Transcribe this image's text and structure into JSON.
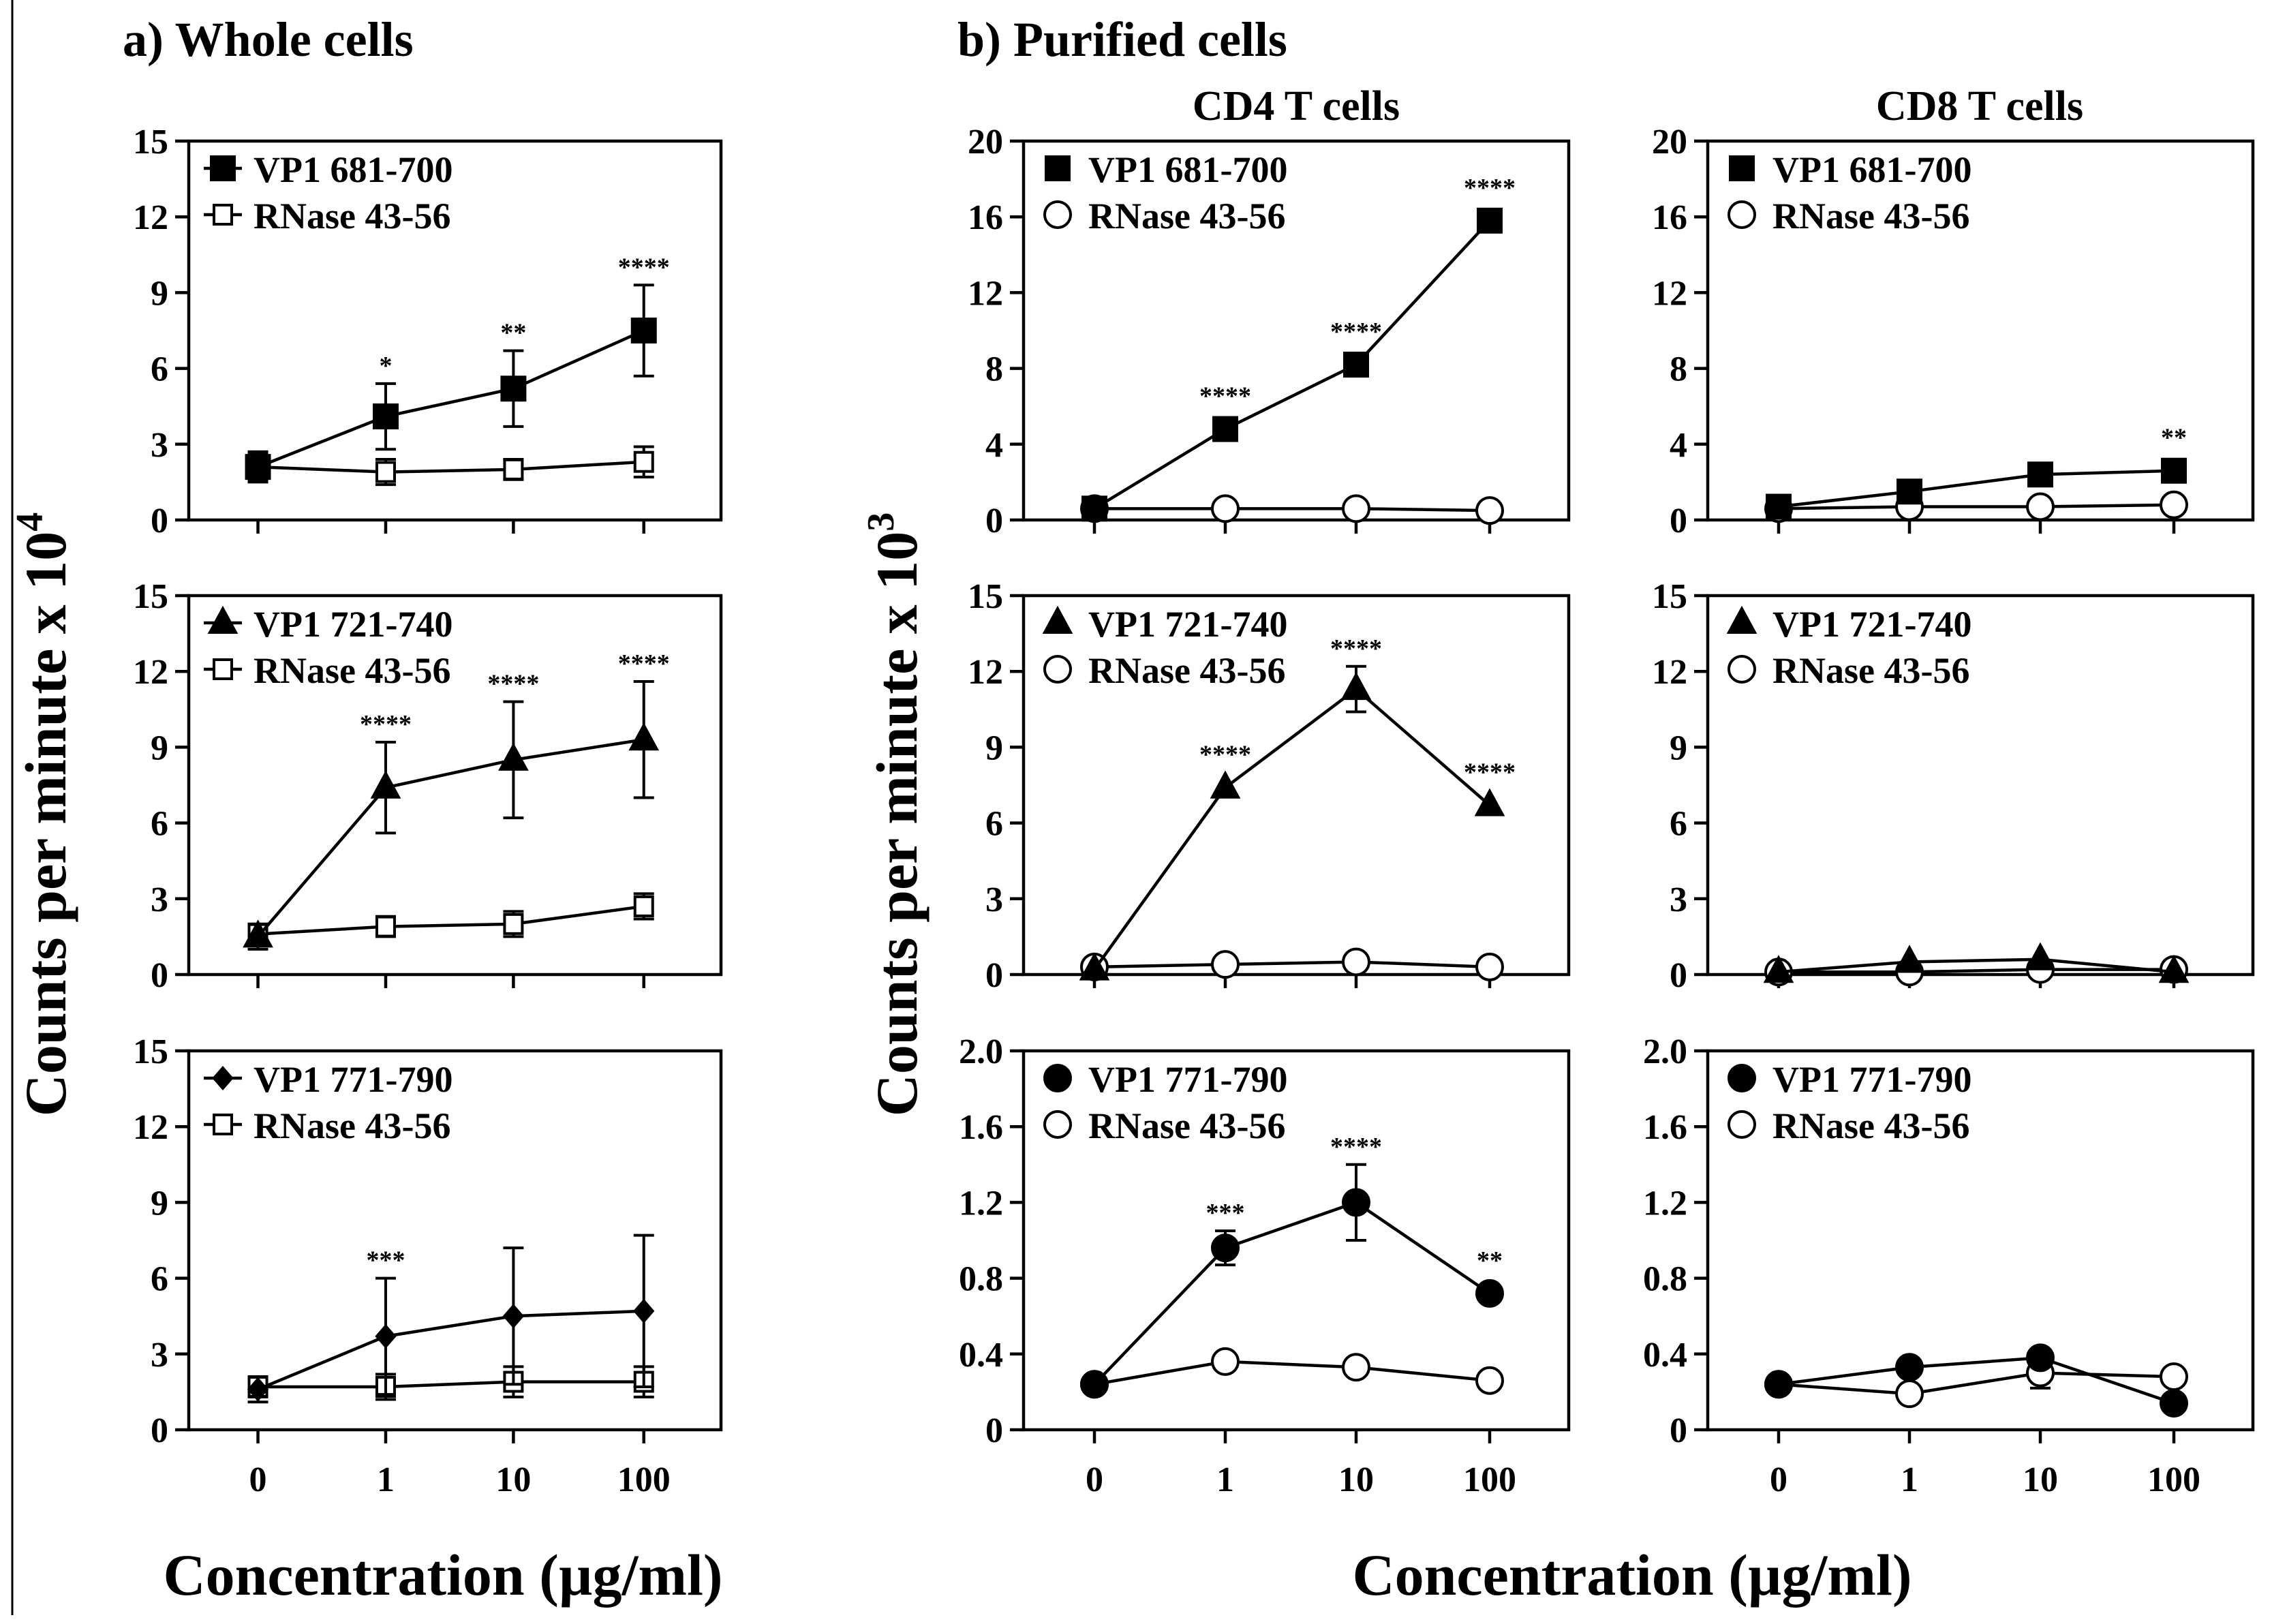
{
  "figure": {
    "panel_a_header": "a) Whole cells",
    "panel_b_header": "b) Purified cells",
    "col_cd4_title": "CD4 T cells",
    "col_cd8_title": "CD8 T cells",
    "ylabel_a": "Counts per minute x 10",
    "ylabel_a_sup": "4",
    "ylabel_b": "Counts per minute x 10",
    "ylabel_b_sup": "3",
    "xlabel_a": "Concentration (µg/ml)",
    "xlabel_b": "Concentration (µg/ml)",
    "colors": {
      "ink": "#000000",
      "background": "#ffffff"
    }
  },
  "chart_data": [
    {
      "id": "whole-vp1-681",
      "type": "line",
      "group": "Whole cells",
      "categories": [
        "0",
        "1",
        "10",
        "100"
      ],
      "xlabel": "Concentration (µg/ml)",
      "ylabel": "Counts per minute x 10^4",
      "ylim": [
        0,
        15
      ],
      "yticks": [
        0,
        3,
        6,
        9,
        12,
        15
      ],
      "yticklabels": [
        "0",
        "3",
        "6",
        "9",
        "12",
        "15"
      ],
      "series": [
        {
          "name": "VP1 681-700",
          "marker": "filled-square",
          "values": [
            2.1,
            4.1,
            5.2,
            7.5
          ],
          "errors": [
            0.6,
            1.3,
            1.5,
            1.8
          ]
        },
        {
          "name": "RNase 43-56",
          "marker": "open-square",
          "values": [
            2.1,
            1.9,
            2.0,
            2.3
          ],
          "errors": [
            0.5,
            0.5,
            0.4,
            0.6
          ]
        }
      ],
      "significance": [
        "",
        "*",
        "**",
        "****"
      ],
      "sig_series": 0
    },
    {
      "id": "whole-vp1-721",
      "type": "line",
      "group": "Whole cells",
      "categories": [
        "0",
        "1",
        "10",
        "100"
      ],
      "xlabel": "Concentration (µg/ml)",
      "ylabel": "Counts per minute x 10^4",
      "ylim": [
        0,
        15
      ],
      "yticks": [
        0,
        3,
        6,
        9,
        12,
        15
      ],
      "yticklabels": [
        "0",
        "3",
        "6",
        "9",
        "12",
        "15"
      ],
      "series": [
        {
          "name": "VP1 721-740",
          "marker": "filled-triangle",
          "values": [
            1.5,
            7.4,
            8.5,
            9.3
          ],
          "errors": [
            0.5,
            1.8,
            2.3,
            2.3
          ]
        },
        {
          "name": "RNase 43-56",
          "marker": "open-square",
          "values": [
            1.6,
            1.9,
            2.0,
            2.7
          ],
          "errors": [
            0.4,
            0.4,
            0.5,
            0.5
          ]
        }
      ],
      "significance": [
        "",
        "****",
        "****",
        "****"
      ],
      "sig_series": 0
    },
    {
      "id": "whole-vp1-771",
      "type": "line",
      "group": "Whole cells",
      "categories": [
        "0",
        "1",
        "10",
        "100"
      ],
      "xlabel": "Concentration (µg/ml)",
      "ylabel": "Counts per minute x 10^4",
      "ylim": [
        0,
        15
      ],
      "yticks": [
        0,
        3,
        6,
        9,
        12,
        15
      ],
      "yticklabels": [
        "0",
        "3",
        "6",
        "9",
        "12",
        "15"
      ],
      "series": [
        {
          "name": "VP1 771-790",
          "marker": "filled-diamond",
          "values": [
            1.6,
            3.7,
            4.5,
            4.7
          ],
          "errors": [
            0.5,
            2.3,
            2.7,
            3.0
          ]
        },
        {
          "name": "RNase 43-56",
          "marker": "open-square",
          "values": [
            1.7,
            1.7,
            1.9,
            1.9
          ],
          "errors": [
            0.4,
            0.5,
            0.6,
            0.6
          ]
        }
      ],
      "significance": [
        "",
        "***",
        "",
        ""
      ],
      "sig_series": 0
    },
    {
      "id": "cd4-vp1-681",
      "type": "line",
      "group": "CD4 T cells",
      "categories": [
        "0",
        "1",
        "10",
        "100"
      ],
      "xlabel": "Concentration (µg/ml)",
      "ylabel": "Counts per minute x 10^3",
      "ylim": [
        0,
        20
      ],
      "yticks": [
        0,
        4,
        8,
        12,
        16,
        20
      ],
      "yticklabels": [
        "0",
        "4",
        "8",
        "12",
        "16",
        "20"
      ],
      "series": [
        {
          "name": "VP1 681-700",
          "marker": "filled-square",
          "values": [
            0.6,
            4.8,
            8.2,
            15.8
          ],
          "errors": [
            0,
            0,
            0,
            0
          ]
        },
        {
          "name": "RNase 43-56",
          "marker": "open-circle",
          "values": [
            0.6,
            0.6,
            0.6,
            0.5
          ],
          "errors": [
            0,
            0,
            0,
            0
          ]
        }
      ],
      "significance": [
        "",
        "****",
        "****",
        "****"
      ],
      "sig_series": 0
    },
    {
      "id": "cd8-vp1-681",
      "type": "line",
      "group": "CD8 T cells",
      "categories": [
        "0",
        "1",
        "10",
        "100"
      ],
      "xlabel": "Concentration (µg/ml)",
      "ylabel": "Counts per minute x 10^3",
      "ylim": [
        0,
        20
      ],
      "yticks": [
        0,
        4,
        8,
        12,
        16,
        20
      ],
      "yticklabels": [
        "0",
        "4",
        "8",
        "12",
        "16",
        "20"
      ],
      "series": [
        {
          "name": "VP1 681-700",
          "marker": "filled-square",
          "values": [
            0.7,
            1.5,
            2.4,
            2.6
          ],
          "errors": [
            0,
            0,
            0,
            0
          ]
        },
        {
          "name": "RNase 43-56",
          "marker": "open-circle",
          "values": [
            0.6,
            0.7,
            0.7,
            0.8
          ],
          "errors": [
            0,
            0,
            0,
            0
          ]
        }
      ],
      "significance": [
        "",
        "",
        "",
        "**"
      ],
      "sig_series": 0
    },
    {
      "id": "cd4-vp1-721",
      "type": "line",
      "group": "CD4 T cells",
      "categories": [
        "0",
        "1",
        "10",
        "100"
      ],
      "xlabel": "Concentration (µg/ml)",
      "ylabel": "Counts per minute x 10^3",
      "ylim": [
        0,
        15
      ],
      "yticks": [
        0,
        3,
        6,
        9,
        12,
        15
      ],
      "yticklabels": [
        "0",
        "3",
        "6",
        "9",
        "12",
        "15"
      ],
      "series": [
        {
          "name": "VP1 721-740",
          "marker": "filled-triangle",
          "values": [
            0.2,
            7.4,
            11.3,
            6.7
          ],
          "errors": [
            0,
            0,
            0.9,
            0
          ]
        },
        {
          "name": "RNase 43-56",
          "marker": "open-circle",
          "values": [
            0.3,
            0.4,
            0.5,
            0.3
          ],
          "errors": [
            0,
            0,
            0,
            0
          ]
        }
      ],
      "significance": [
        "",
        "****",
        "****",
        "****"
      ],
      "sig_series": 0
    },
    {
      "id": "cd8-vp1-721",
      "type": "line",
      "group": "CD8 T cells",
      "categories": [
        "0",
        "1",
        "10",
        "100"
      ],
      "xlabel": "Concentration (µg/ml)",
      "ylabel": "Counts per minute x 10^3",
      "ylim": [
        0,
        15
      ],
      "yticks": [
        0,
        3,
        6,
        9,
        12,
        15
      ],
      "yticklabels": [
        "0",
        "3",
        "6",
        "9",
        "12",
        "15"
      ],
      "series": [
        {
          "name": "VP1 721-740",
          "marker": "filled-triangle",
          "values": [
            0.1,
            0.5,
            0.6,
            0.1
          ],
          "errors": [
            0,
            0,
            0,
            0
          ]
        },
        {
          "name": "RNase 43-56",
          "marker": "open-circle",
          "values": [
            0.1,
            0.1,
            0.2,
            0.2
          ],
          "errors": [
            0,
            0,
            0,
            0
          ]
        }
      ],
      "significance": [
        "",
        "",
        "",
        ""
      ],
      "sig_series": 0
    },
    {
      "id": "cd4-vp1-771",
      "type": "line",
      "group": "CD4 T cells",
      "categories": [
        "0",
        "1",
        "10",
        "100"
      ],
      "xlabel": "Concentration (µg/ml)",
      "ylabel": "Counts per minute x 10^3",
      "ylim": [
        0,
        2.0
      ],
      "yticks": [
        0,
        0.4,
        0.8,
        1.2,
        1.6,
        2.0
      ],
      "yticklabels": [
        "0",
        "0.4",
        "0.8",
        "1.2",
        "1.6",
        "2.0"
      ],
      "series": [
        {
          "name": "VP1 771-790",
          "marker": "filled-circle",
          "values": [
            0.24,
            0.96,
            1.2,
            0.72
          ],
          "errors": [
            0,
            0.09,
            0.2,
            0
          ]
        },
        {
          "name": "RNase 43-56",
          "marker": "open-circle",
          "values": [
            0.24,
            0.36,
            0.33,
            0.26
          ],
          "errors": [
            0,
            0,
            0,
            0
          ]
        }
      ],
      "significance": [
        "",
        "***",
        "****",
        "**"
      ],
      "sig_series": 0
    },
    {
      "id": "cd8-vp1-771",
      "type": "line",
      "group": "CD8 T cells",
      "categories": [
        "0",
        "1",
        "10",
        "100"
      ],
      "xlabel": "Concentration (µg/ml)",
      "ylabel": "Counts per minute x 10^3",
      "ylim": [
        0,
        2.0
      ],
      "yticks": [
        0,
        0.4,
        0.8,
        1.2,
        1.6,
        2.0
      ],
      "yticklabels": [
        "0",
        "0.4",
        "0.8",
        "1.2",
        "1.6",
        "2.0"
      ],
      "series": [
        {
          "name": "VP1 771-790",
          "marker": "filled-circle",
          "values": [
            0.24,
            0.33,
            0.38,
            0.14
          ],
          "errors": [
            0,
            0,
            0,
            0
          ]
        },
        {
          "name": "RNase 43-56",
          "marker": "open-circle",
          "values": [
            0.24,
            0.19,
            0.3,
            0.28
          ],
          "errors": [
            0,
            0,
            0.08,
            0
          ]
        }
      ],
      "significance": [
        "",
        "",
        "",
        ""
      ],
      "sig_series": 0
    }
  ]
}
